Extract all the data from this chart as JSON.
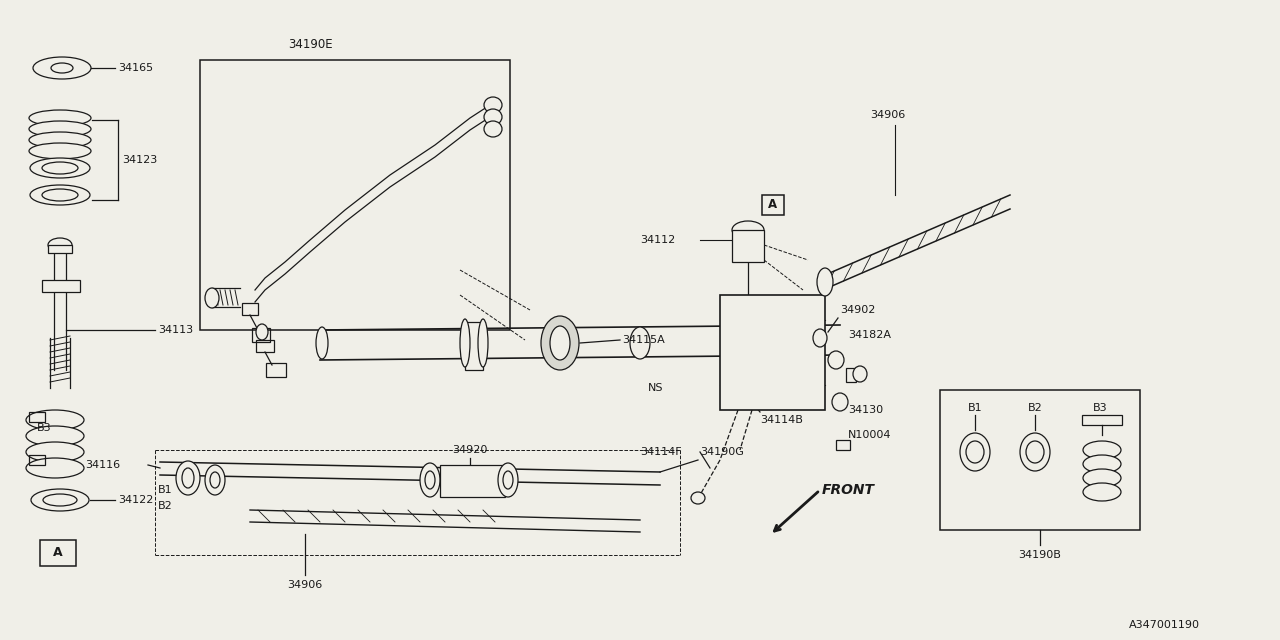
{
  "bg_color": "#f0efe8",
  "line_color": "#1a1a1a",
  "text_color": "#1a1a1a",
  "diagram_id": "A347001190",
  "figsize": [
    12.8,
    6.4
  ],
  "dpi": 100,
  "xlim": [
    0,
    1280
  ],
  "ylim": [
    0,
    640
  ]
}
